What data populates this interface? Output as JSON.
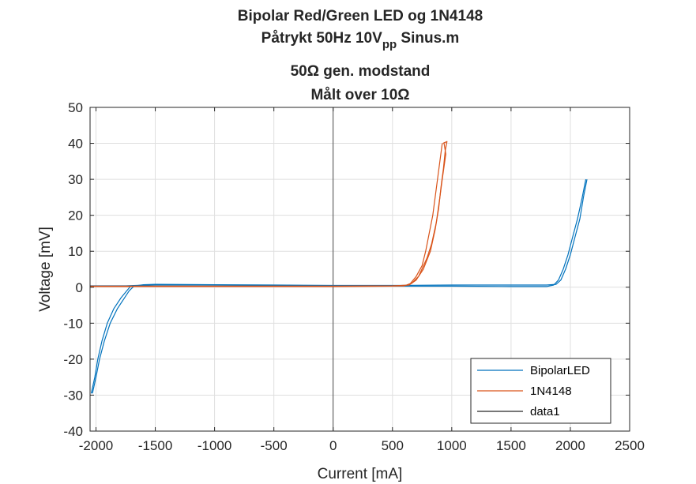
{
  "chart_data": {
    "type": "line",
    "title_lines": [
      {
        "parts": [
          {
            "text": "Bipolar Red/Green LED og 1N4148"
          }
        ]
      },
      {
        "parts": [
          {
            "text": "Påtrykt 50Hz 10V"
          },
          {
            "text": "pp",
            "sub": true
          },
          {
            "text": " Sinus.m"
          }
        ]
      },
      {
        "parts": [
          {
            "text": "50Ω gen. modstand"
          }
        ]
      },
      {
        "parts": [
          {
            "text": "Målt over 10Ω"
          }
        ]
      }
    ],
    "xlabel": "Current [mA]",
    "ylabel": "Voltage [mV]",
    "xlim": [
      -2050,
      2500
    ],
    "ylim": [
      -40,
      50
    ],
    "xticks": [
      -2000,
      -1500,
      -1000,
      -500,
      0,
      500,
      1000,
      1500,
      2000,
      2500
    ],
    "yticks": [
      -40,
      -30,
      -20,
      -10,
      0,
      10,
      20,
      30,
      40,
      50
    ],
    "grid": true,
    "legend": {
      "position": "bottom-right"
    },
    "series": [
      {
        "name": "BipolarLED",
        "color": "#0072BD",
        "branches": [
          [
            [
              -2050,
              0.4
            ],
            [
              -1750,
              0.4
            ],
            [
              -1500,
              0.7
            ],
            [
              -1000,
              0.6
            ],
            [
              -500,
              0.5
            ],
            [
              0,
              0.4
            ],
            [
              500,
              0.3
            ],
            [
              1000,
              0.3
            ],
            [
              1500,
              0.2
            ],
            [
              1800,
              0.2
            ],
            [
              1860,
              0.6
            ],
            [
              1900,
              2
            ],
            [
              1940,
              5
            ],
            [
              1980,
              9
            ],
            [
              2020,
              14
            ],
            [
              2060,
              19
            ],
            [
              2100,
              25
            ],
            [
              2130,
              30
            ]
          ],
          [
            [
              2140,
              30
            ],
            [
              2110,
              25
            ],
            [
              2080,
              19
            ],
            [
              2040,
              14
            ],
            [
              2000,
              9
            ],
            [
              1960,
              5
            ],
            [
              1920,
              2
            ],
            [
              1880,
              0.8
            ],
            [
              1800,
              0.6
            ],
            [
              1500,
              0.6
            ],
            [
              1000,
              0.6
            ],
            [
              500,
              0.5
            ],
            [
              0,
              0.5
            ],
            [
              -500,
              0.6
            ],
            [
              -1000,
              0.7
            ],
            [
              -1500,
              0.8
            ],
            [
              -1600,
              0.7
            ],
            [
              -1680,
              0.3
            ],
            [
              -1720,
              -1
            ],
            [
              -1760,
              -3
            ],
            [
              -1820,
              -6
            ],
            [
              -1880,
              -10
            ],
            [
              -1930,
              -15
            ],
            [
              -1970,
              -20
            ],
            [
              -2000,
              -25
            ],
            [
              -2030,
              -29.5
            ]
          ],
          [
            [
              -2040,
              -29.5
            ],
            [
              -2010,
              -25
            ],
            [
              -1985,
              -20
            ],
            [
              -1950,
              -15
            ],
            [
              -1905,
              -10
            ],
            [
              -1850,
              -6
            ],
            [
              -1790,
              -3
            ],
            [
              -1740,
              -1
            ],
            [
              -1710,
              0.2
            ],
            [
              -1650,
              0.4
            ],
            [
              -1500,
              0.6
            ],
            [
              -1000,
              0.6
            ],
            [
              -500,
              0.5
            ],
            [
              0,
              0.4
            ]
          ]
        ]
      },
      {
        "name": "1N4148",
        "color": "#D95319",
        "branches": [
          [
            [
              -2050,
              0.2
            ],
            [
              -1500,
              0.2
            ],
            [
              -1000,
              0.2
            ],
            [
              -500,
              0.2
            ],
            [
              0,
              0.2
            ],
            [
              500,
              0.3
            ],
            [
              600,
              0.4
            ],
            [
              650,
              1
            ],
            [
              700,
              3
            ],
            [
              750,
              6
            ],
            [
              780,
              10
            ],
            [
              810,
              15
            ],
            [
              840,
              20
            ],
            [
              860,
              25
            ],
            [
              880,
              30
            ],
            [
              900,
              35
            ],
            [
              920,
              40
            ]
          ],
          [
            [
              925,
              40
            ],
            [
              960,
              40.5
            ],
            [
              945,
              38
            ],
            [
              930,
              33
            ],
            [
              910,
              28
            ],
            [
              890,
              22
            ],
            [
              860,
              16
            ],
            [
              820,
              10
            ],
            [
              760,
              5
            ],
            [
              700,
              2
            ],
            [
              640,
              0.6
            ],
            [
              500,
              0.4
            ],
            [
              0,
              0.3
            ],
            [
              -500,
              0.3
            ],
            [
              -1000,
              0.3
            ],
            [
              -1500,
              0.3
            ],
            [
              -2050,
              0.3
            ]
          ],
          [
            [
              935,
              40
            ],
            [
              950,
              37
            ],
            [
              920,
              30
            ],
            [
              900,
              25
            ],
            [
              870,
              18
            ],
            [
              830,
              12
            ],
            [
              790,
              8
            ],
            [
              720,
              3
            ],
            [
              660,
              1
            ]
          ]
        ]
      },
      {
        "name": "data1",
        "color": "#262626",
        "branches": [
          [
            [
              0,
              -40
            ],
            [
              0,
              50
            ]
          ]
        ]
      }
    ]
  }
}
